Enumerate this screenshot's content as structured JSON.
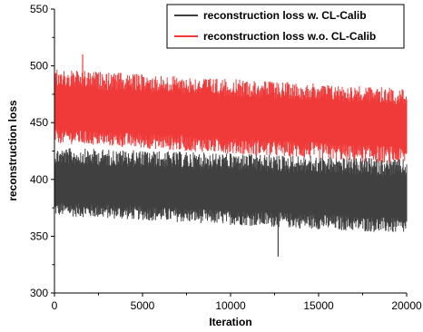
{
  "chart_data": {
    "type": "line",
    "title": "",
    "xlabel": "Iteration",
    "ylabel": "reconstruction loss",
    "xlim": [
      0,
      20000
    ],
    "ylim": [
      300,
      550
    ],
    "xticks": [
      "0",
      "5000",
      "10000",
      "15000",
      "20000"
    ],
    "yticks": [
      "300",
      "350",
      "400",
      "450",
      "500",
      "550"
    ],
    "grid": false,
    "legend_position": "top-right",
    "series": [
      {
        "name": "reconstruction loss w. CL-Calib",
        "color": "#404040",
        "band": {
          "x": [
            0,
            20000
          ],
          "center": [
            395,
            383
          ],
          "low": [
            368,
            352
          ],
          "high": [
            428,
            418
          ]
        },
        "min_point": {
          "x": 12700,
          "y": 332
        }
      },
      {
        "name": "reconstruction loss w.o. CL-Calib",
        "color": "#f03a3a",
        "band": {
          "x": [
            0,
            20000
          ],
          "center": [
            460,
            448
          ],
          "low": [
            432,
            413
          ],
          "high": [
            497,
            480
          ]
        },
        "max_point": {
          "x": 1600,
          "y": 510
        }
      }
    ]
  }
}
